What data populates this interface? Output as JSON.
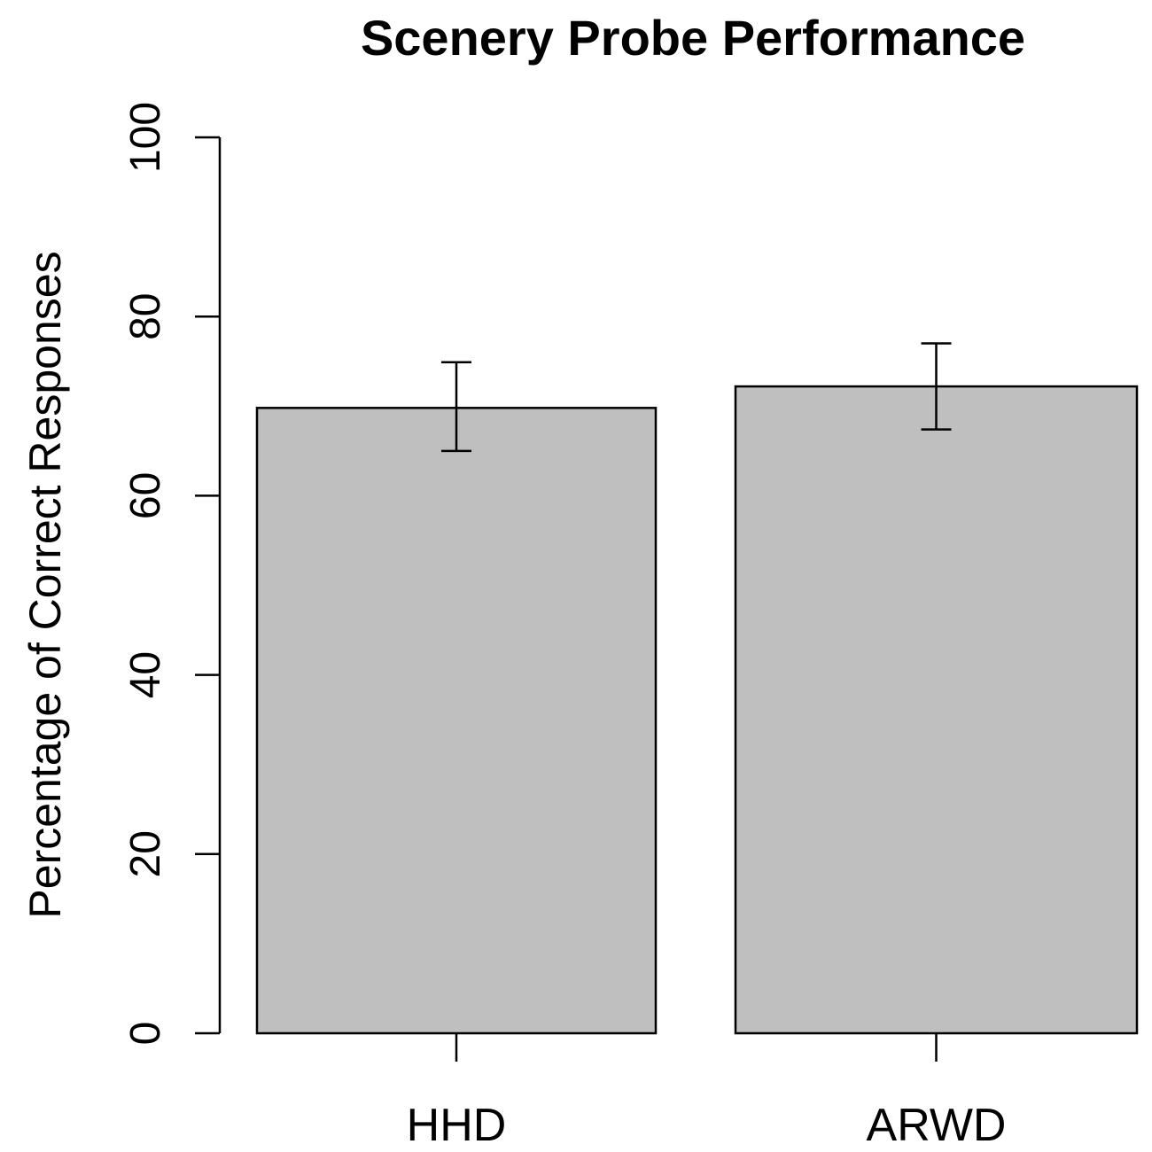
{
  "chart_data": {
    "type": "bar",
    "title": "Scenery Probe Performance",
    "xlabel": "",
    "ylabel": "Percentage of Correct Responses",
    "categories": [
      "HHD",
      "ARWD"
    ],
    "values": [
      69.8,
      72.2
    ],
    "error_bars": [
      {
        "low": 65.0,
        "high": 74.9
      },
      {
        "low": 67.4,
        "high": 77.0
      }
    ],
    "ylim": [
      0,
      100
    ],
    "yticks": [
      0,
      20,
      40,
      60,
      80,
      100
    ],
    "bar_color": "#bfbfbf",
    "grid": false
  }
}
